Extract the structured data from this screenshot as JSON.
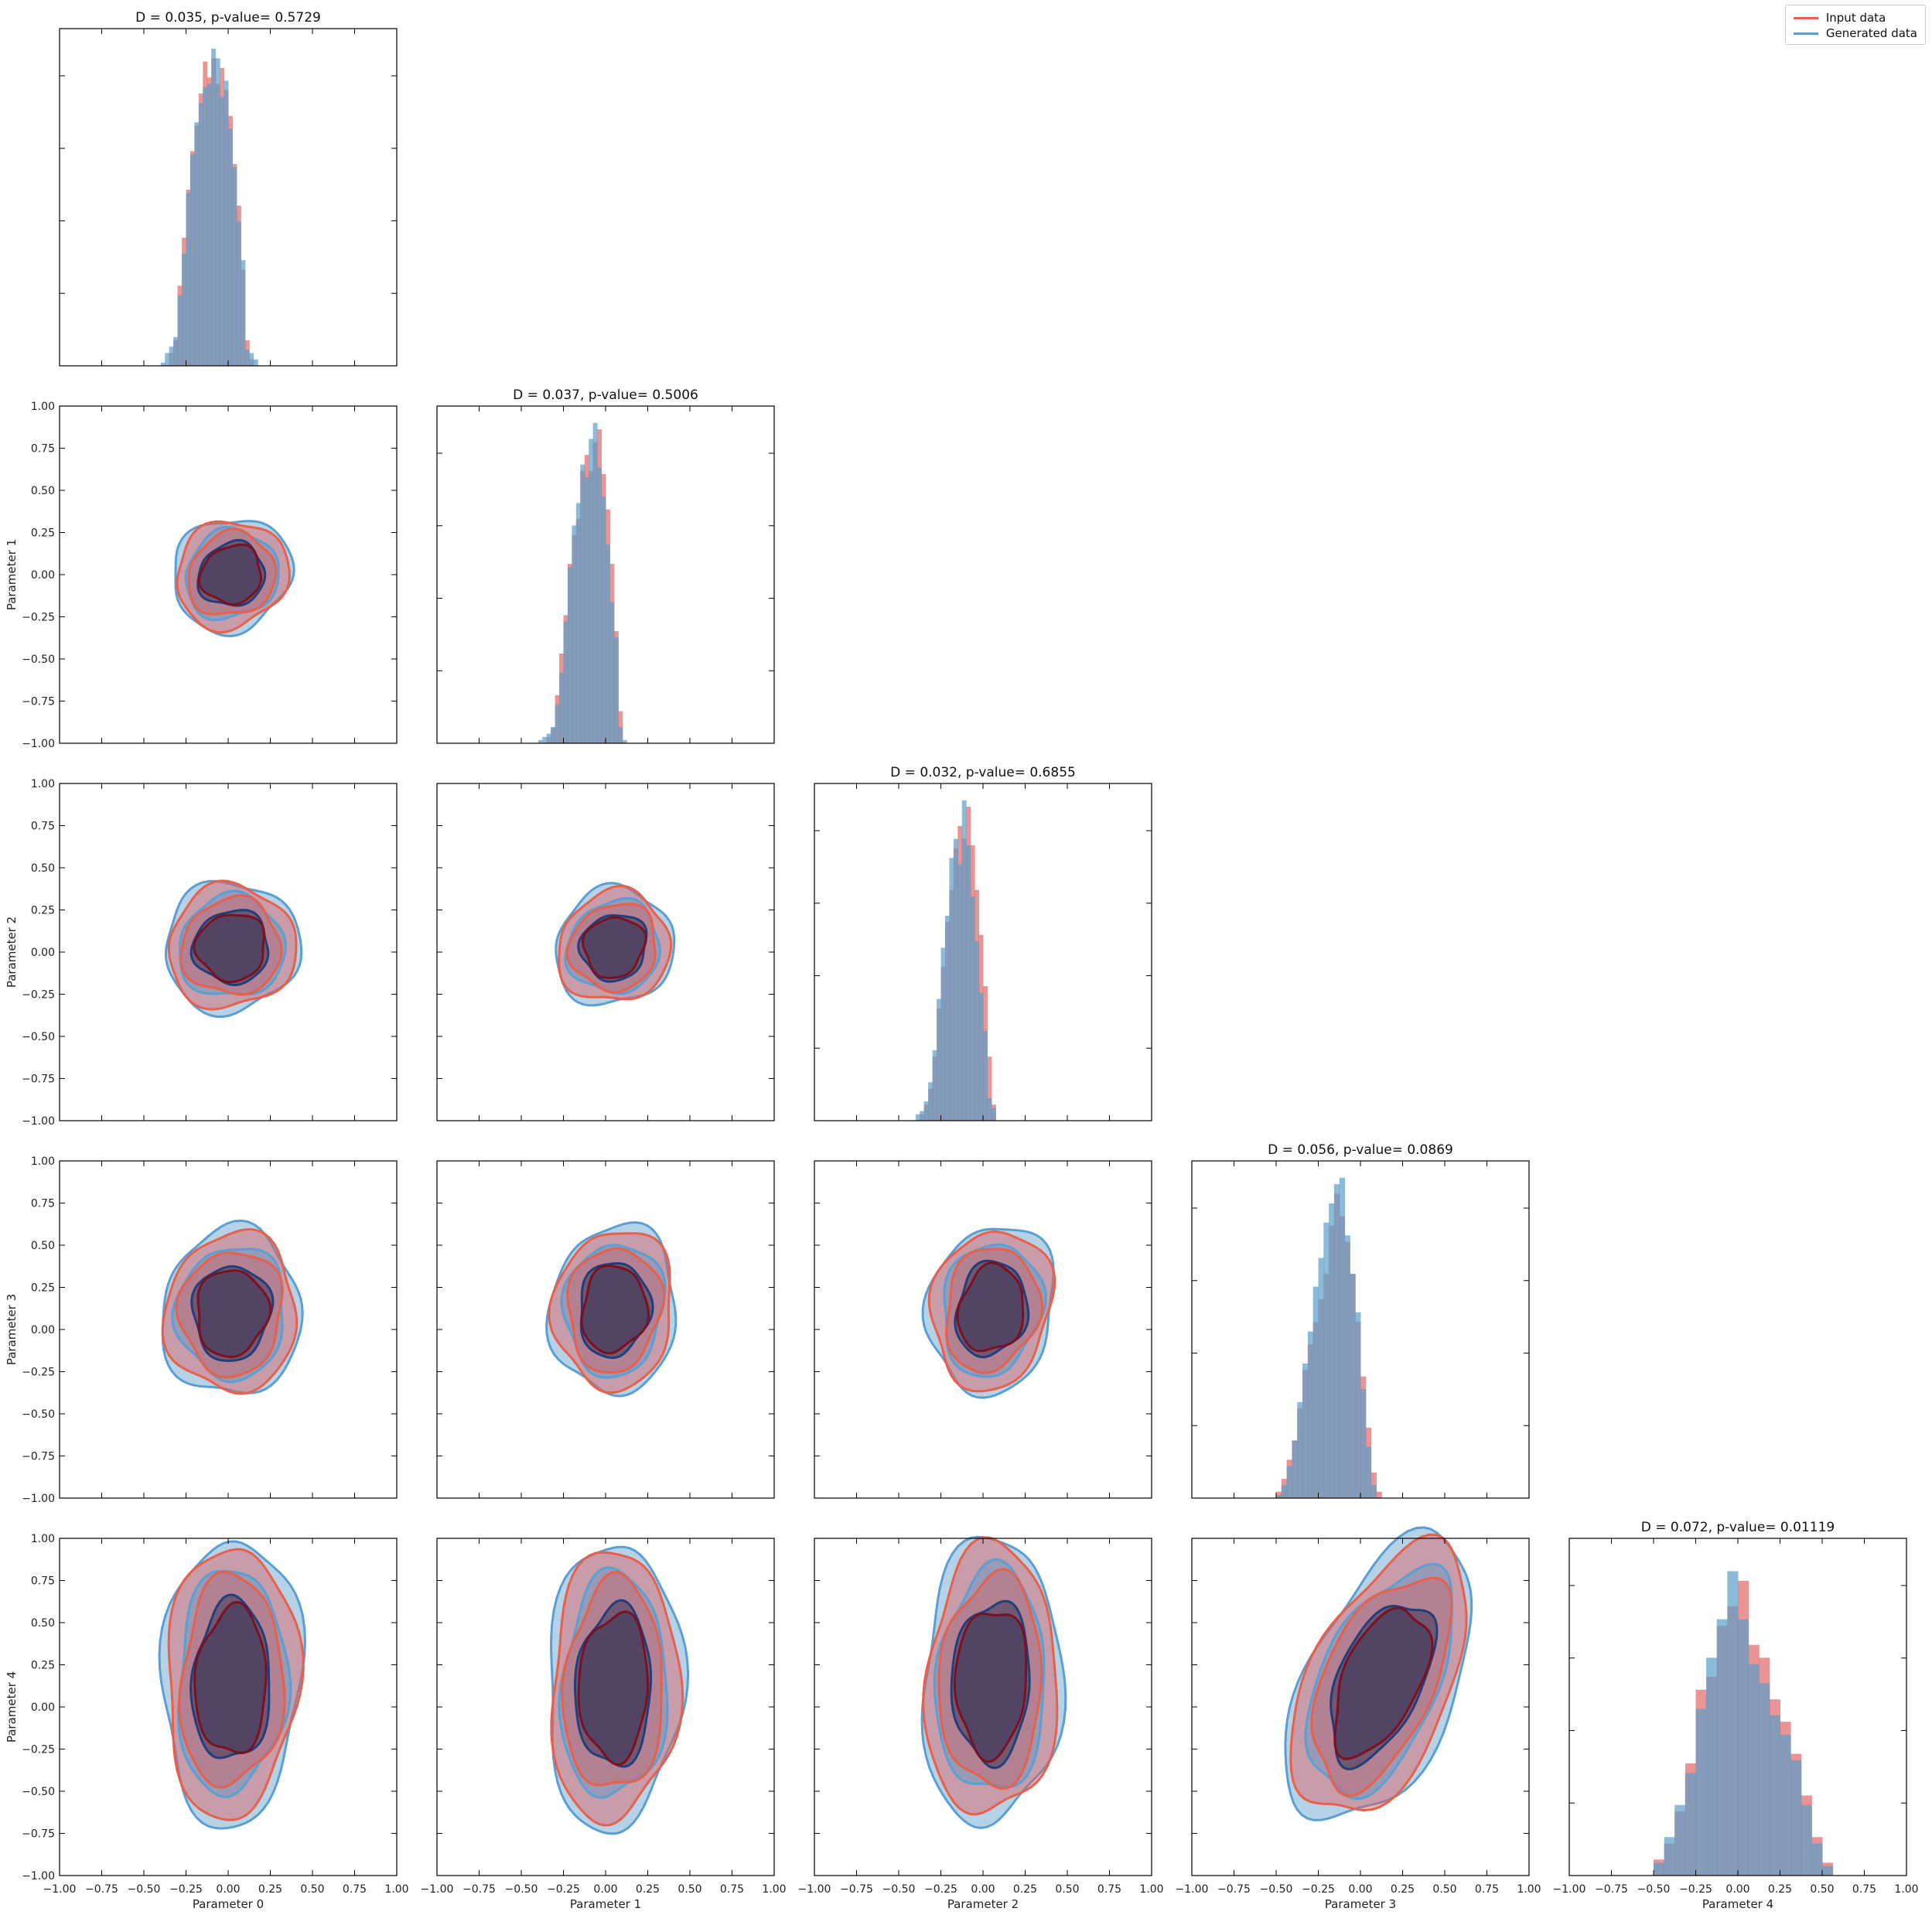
{
  "chart_data": {
    "type": "corner-plot",
    "panel_types": {
      "diagonal": "histogram",
      "lower": "filled-contour"
    },
    "parameters": [
      "Parameter 0",
      "Parameter 1",
      "Parameter 2",
      "Parameter 3",
      "Parameter 4"
    ],
    "axis_range": [
      -1.0,
      1.0
    ],
    "tick_labels": [
      "−1.00",
      "−0.75",
      "−0.50",
      "−0.25",
      "0.00",
      "0.25",
      "0.50",
      "0.75",
      "1.00"
    ],
    "tick_values": [
      -1.0,
      -0.75,
      -0.5,
      -0.25,
      0.0,
      0.25,
      0.5,
      0.75,
      1.0
    ],
    "grid": false,
    "legend_position": "top-right",
    "series": [
      {
        "name": "Input data",
        "color": "#e8604a",
        "fill": "#e05a5a",
        "inner": "#7a1020"
      },
      {
        "name": "Generated data",
        "color": "#5a9fd4",
        "fill": "#5b9cc9",
        "inner": "#1f3f7a"
      }
    ],
    "titles": [
      "D = 0.035, p-value= 0.5729",
      "D = 0.037, p-value= 0.5006",
      "D = 0.032, p-value= 0.6855",
      "D = 0.056, p-value= 0.0869",
      "D = 0.072, p-value= 0.01119"
    ],
    "histograms": [
      {
        "bin_start": -0.4,
        "bin_width": 0.025,
        "input": [
          0.0,
          0.0,
          0.04,
          0.08,
          0.25,
          0.4,
          0.55,
          0.67,
          0.75,
          0.85,
          0.95,
          0.9,
          0.96,
          0.88,
          0.93,
          0.86,
          0.78,
          0.63,
          0.5,
          0.3,
          0.08,
          0.02,
          0.0,
          0.0,
          0.0
        ],
        "generated": [
          0.01,
          0.04,
          0.06,
          0.09,
          0.22,
          0.35,
          0.54,
          0.66,
          0.76,
          0.82,
          0.87,
          0.88,
          0.99,
          0.96,
          0.84,
          0.89,
          0.74,
          0.62,
          0.45,
          0.33,
          0.05,
          0.04,
          0.02,
          0.0,
          0.0
        ]
      },
      {
        "bin_start": -0.4,
        "bin_width": 0.025,
        "input": [
          0.0,
          0.0,
          0.02,
          0.05,
          0.15,
          0.28,
          0.4,
          0.56,
          0.65,
          0.7,
          0.85,
          0.9,
          0.85,
          0.94,
          0.98,
          0.84,
          0.73,
          0.56,
          0.35,
          0.1,
          0.0,
          0.0,
          0.0,
          0.0,
          0.0
        ],
        "generated": [
          0.01,
          0.02,
          0.03,
          0.05,
          0.12,
          0.22,
          0.38,
          0.55,
          0.68,
          0.75,
          0.87,
          0.83,
          0.95,
          1.0,
          0.86,
          0.77,
          0.62,
          0.44,
          0.33,
          0.05,
          0.01,
          0.0,
          0.0,
          0.0,
          0.0
        ]
      },
      {
        "bin_start": -0.4,
        "bin_width": 0.025,
        "input": [
          0.0,
          0.02,
          0.05,
          0.1,
          0.2,
          0.35,
          0.48,
          0.62,
          0.72,
          0.85,
          0.92,
          0.88,
          0.98,
          0.86,
          0.72,
          0.58,
          0.42,
          0.2,
          0.05,
          0.0,
          0.0,
          0.0,
          0.0,
          0.0,
          0.0
        ],
        "generated": [
          0.02,
          0.03,
          0.06,
          0.12,
          0.22,
          0.38,
          0.54,
          0.64,
          0.82,
          0.88,
          0.8,
          1.0,
          0.86,
          0.7,
          0.56,
          0.4,
          0.28,
          0.07,
          0.04,
          0.0,
          0.0,
          0.0,
          0.0,
          0.0,
          0.0
        ]
      },
      {
        "bin_start": -0.5,
        "bin_width": 0.03125,
        "input": [
          0.02,
          0.06,
          0.12,
          0.18,
          0.28,
          0.4,
          0.48,
          0.55,
          0.62,
          0.7,
          0.85,
          0.95,
          0.88,
          0.8,
          0.7,
          0.55,
          0.38,
          0.22,
          0.08,
          0.02,
          0.0,
          0.0,
          0.0,
          0.0,
          0.0
        ],
        "generated": [
          0.01,
          0.04,
          0.1,
          0.18,
          0.3,
          0.42,
          0.52,
          0.66,
          0.75,
          0.86,
          0.92,
          0.98,
          1.0,
          0.82,
          0.7,
          0.58,
          0.34,
          0.16,
          0.04,
          0.0,
          0.0,
          0.0,
          0.0,
          0.0,
          0.0
        ]
      },
      {
        "bin_start": -0.5,
        "bin_width": 0.0625,
        "input": [
          0.05,
          0.1,
          0.2,
          0.35,
          0.58,
          0.62,
          0.78,
          0.84,
          0.92,
          0.72,
          0.68,
          0.55,
          0.48,
          0.38,
          0.25,
          0.12,
          0.04,
          0.0,
          0.0,
          0.0,
          0.0,
          0.0,
          0.0,
          0.0,
          0.0
        ],
        "generated": [
          0.04,
          0.12,
          0.22,
          0.32,
          0.52,
          0.68,
          0.8,
          0.95,
          0.8,
          0.66,
          0.6,
          0.5,
          0.44,
          0.36,
          0.22,
          0.1,
          0.03,
          0.0,
          0.0,
          0.0,
          0.0,
          0.0,
          0.0,
          0.0,
          0.0
        ]
      }
    ],
    "contour_cells": [
      {
        "row": 1,
        "col": 0,
        "xc": 0.02,
        "yc": 0.0,
        "rx": 0.28,
        "ry": 0.27,
        "skew": 0.15
      },
      {
        "row": 2,
        "col": 0,
        "xc": 0.02,
        "yc": 0.03,
        "rx": 0.32,
        "ry": 0.31,
        "skew": 0.05
      },
      {
        "row": 2,
        "col": 1,
        "xc": 0.05,
        "yc": 0.03,
        "rx": 0.28,
        "ry": 0.28,
        "skew": 0.12
      },
      {
        "row": 3,
        "col": 0,
        "xc": 0.02,
        "yc": 0.1,
        "rx": 0.33,
        "ry": 0.4,
        "skew": 0.05
      },
      {
        "row": 3,
        "col": 1,
        "xc": 0.05,
        "yc": 0.12,
        "rx": 0.3,
        "ry": 0.4,
        "skew": 0.08
      },
      {
        "row": 3,
        "col": 2,
        "xc": 0.05,
        "yc": 0.12,
        "rx": 0.3,
        "ry": 0.4,
        "skew": 0.15
      },
      {
        "row": 4,
        "col": 0,
        "xc": 0.02,
        "yc": 0.15,
        "rx": 0.33,
        "ry": 0.68,
        "skew": 0.05
      },
      {
        "row": 4,
        "col": 1,
        "xc": 0.05,
        "yc": 0.12,
        "rx": 0.32,
        "ry": 0.68,
        "skew": 0.05
      },
      {
        "row": 4,
        "col": 2,
        "xc": 0.05,
        "yc": 0.15,
        "rx": 0.33,
        "ry": 0.68,
        "skew": 0.05
      },
      {
        "row": 4,
        "col": 3,
        "xc": 0.12,
        "yc": 0.15,
        "rx": 0.38,
        "ry": 0.68,
        "skew": 0.55
      }
    ]
  }
}
